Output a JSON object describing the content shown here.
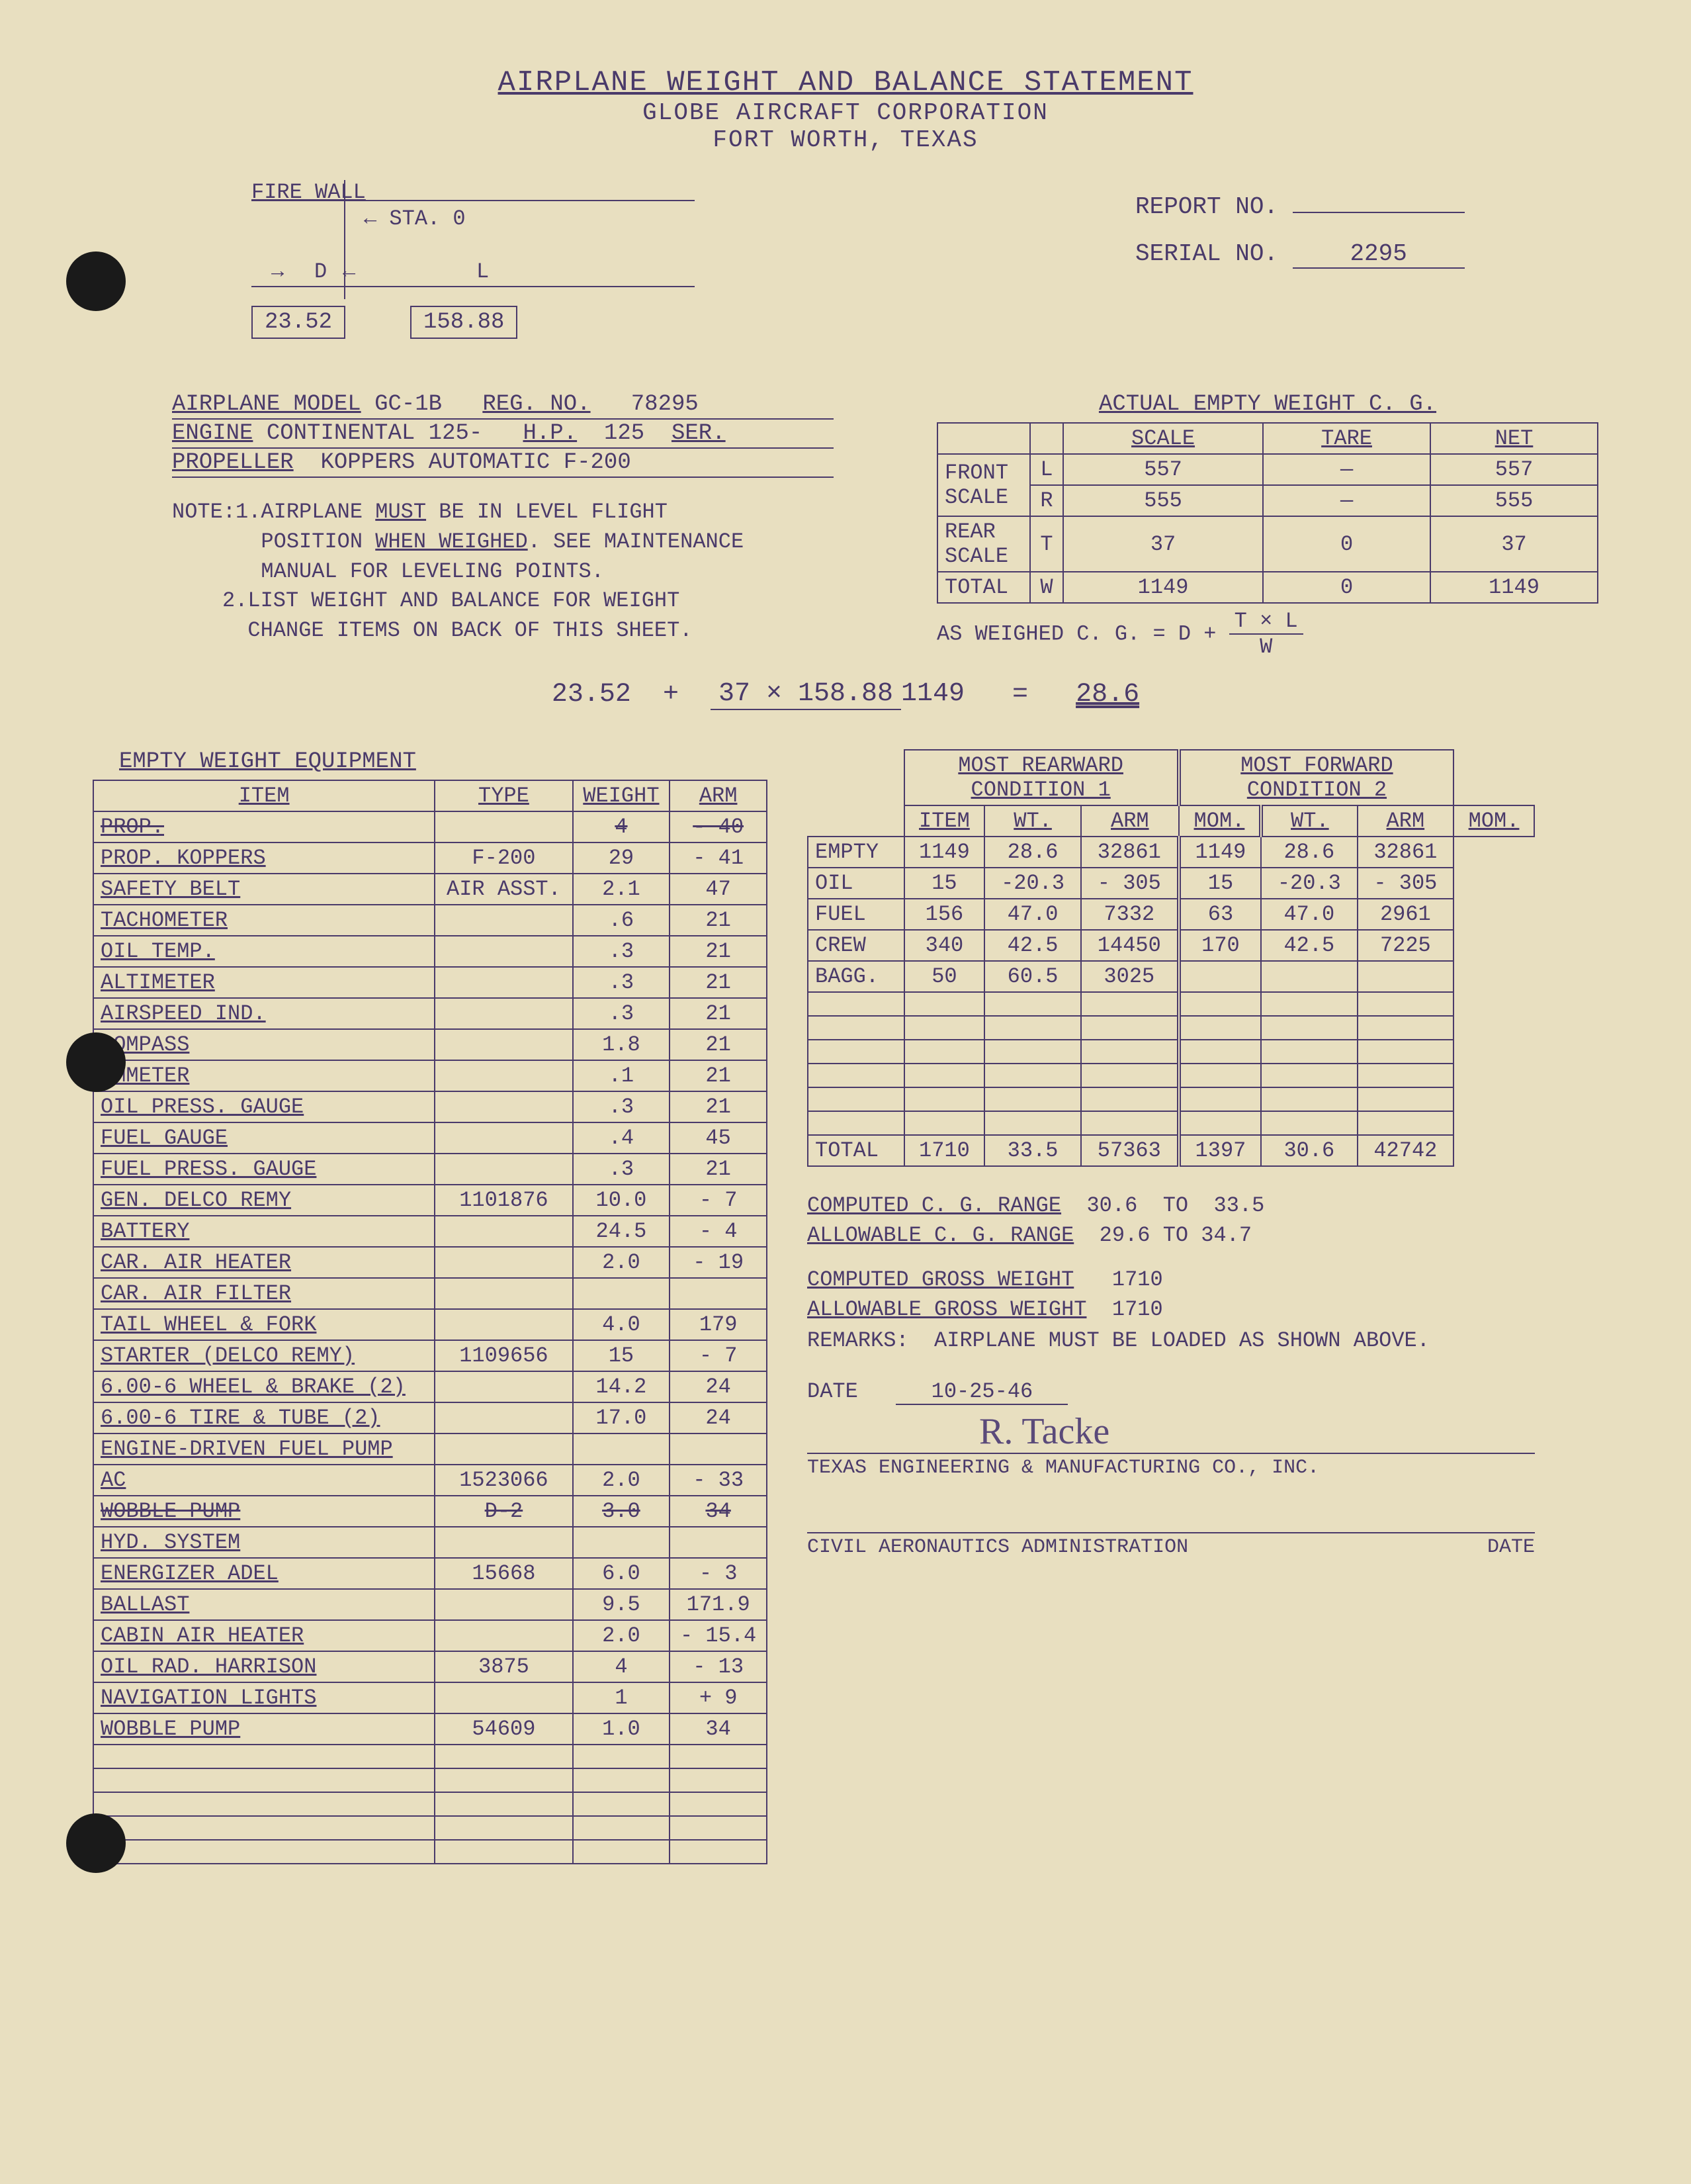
{
  "header": {
    "title": "AIRPLANE WEIGHT AND BALANCE STATEMENT",
    "company": "GLOBE AIRCRAFT CORPORATION",
    "location": "FORT WORTH, TEXAS"
  },
  "diagram": {
    "firewall_label": "FIRE WALL",
    "sta_label": "STA. 0",
    "d_label": "D",
    "l_label": "L",
    "d_value": "23.52",
    "l_value": "158.88"
  },
  "report": {
    "report_no_label": "REPORT NO.",
    "report_no": "",
    "serial_no_label": "SERIAL NO.",
    "serial_no": "2295"
  },
  "aircraft": {
    "model_label": "AIRPLANE MODEL",
    "model": "GC-1B",
    "reg_label": "REG. NO.",
    "reg": "78295",
    "engine_label": "ENGINE",
    "engine": "CONTINENTAL 125-",
    "hp_label": "H.P.",
    "hp": "125",
    "ser_label": "SER.",
    "prop_label": "PROPELLER",
    "prop": "KOPPERS AUTOMATIC F-200"
  },
  "notes": {
    "label": "NOTE:",
    "n1": "1.",
    "note1": "AIRPLANE MUST BE IN LEVEL FLIGHT POSITION WHEN WEIGHED. SEE MAINTENANCE MANUAL FOR LEVELING POINTS.",
    "n2": "2.",
    "note2": "LIST WEIGHT AND BALANCE FOR WEIGHT CHANGE ITEMS ON BACK OF THIS SHEET."
  },
  "weight_table": {
    "title": "ACTUAL EMPTY WEIGHT C. G.",
    "cols": [
      "",
      "",
      "SCALE",
      "TARE",
      "NET"
    ],
    "rows": [
      [
        "FRONT",
        "L",
        "557",
        "—",
        "557"
      ],
      [
        "SCALE",
        "R",
        "555",
        "—",
        "555"
      ],
      [
        "REAR SCALE",
        "T",
        "37",
        "0",
        "37"
      ],
      [
        "TOTAL",
        "W",
        "1149",
        "0",
        "1149"
      ]
    ],
    "formula": "AS WEIGHED C. G. = D + T × L / W"
  },
  "calc": {
    "d": "23.52",
    "plus": "+",
    "top": "37 × 158.88",
    "bot": "1149",
    "eq": "=",
    "result": "28.6"
  },
  "equip": {
    "title": "EMPTY WEIGHT EQUIPMENT",
    "cols": [
      "ITEM",
      "TYPE",
      "WEIGHT",
      "ARM"
    ],
    "rows": [
      {
        "item": "PROP.",
        "type": "",
        "wt": "4",
        "arm": "- 40",
        "strike": true
      },
      {
        "item": "PROP. KOPPERS",
        "type": "F-200",
        "wt": "29",
        "arm": "- 41"
      },
      {
        "item": "SAFETY BELT",
        "type": "AIR ASST.",
        "wt": "2.1",
        "arm": "47"
      },
      {
        "item": "TACHOMETER",
        "type": "",
        "wt": ".6",
        "arm": "21"
      },
      {
        "item": "OIL TEMP.",
        "type": "",
        "wt": ".3",
        "arm": "21"
      },
      {
        "item": "ALTIMETER",
        "type": "",
        "wt": ".3",
        "arm": "21"
      },
      {
        "item": "AIRSPEED IND.",
        "type": "",
        "wt": ".3",
        "arm": "21"
      },
      {
        "item": "COMPASS",
        "type": "",
        "wt": "1.8",
        "arm": "21"
      },
      {
        "item": "AMMETER",
        "type": "",
        "wt": ".1",
        "arm": "21"
      },
      {
        "item": "OIL PRESS. GAUGE",
        "type": "",
        "wt": ".3",
        "arm": "21"
      },
      {
        "item": "FUEL GAUGE",
        "type": "",
        "wt": ".4",
        "arm": "45"
      },
      {
        "item": "FUEL PRESS. GAUGE",
        "type": "",
        "wt": ".3",
        "arm": "21"
      },
      {
        "item": "GEN. DELCO REMY",
        "type": "1101876",
        "wt": "10.0",
        "arm": "- 7"
      },
      {
        "item": "BATTERY",
        "type": "",
        "wt": "24.5",
        "arm": "- 4"
      },
      {
        "item": "CAR. AIR HEATER",
        "type": "",
        "wt": "2.0",
        "arm": "- 19"
      },
      {
        "item": "CAR. AIR FILTER",
        "type": "",
        "wt": "",
        "arm": ""
      },
      {
        "item": "TAIL WHEEL & FORK",
        "type": "",
        "wt": "4.0",
        "arm": "179"
      },
      {
        "item": "STARTER (DELCO REMY)",
        "type": "1109656",
        "wt": "15",
        "arm": "- 7"
      },
      {
        "item": "6.00-6 WHEEL & BRAKE (2)",
        "type": "",
        "wt": "14.2",
        "arm": "24"
      },
      {
        "item": "6.00-6 TIRE & TUBE (2)",
        "type": "",
        "wt": "17.0",
        "arm": "24"
      },
      {
        "item": "ENGINE-DRIVEN FUEL PUMP",
        "type": "",
        "wt": "",
        "arm": ""
      },
      {
        "item": "AC",
        "type": "1523066",
        "wt": "2.0",
        "arm": "- 33"
      },
      {
        "item": "WOBBLE PUMP",
        "type": "D-2",
        "wt": "3.0",
        "arm": "34",
        "strike": true
      },
      {
        "item": "HYD. SYSTEM",
        "type": "",
        "wt": "",
        "arm": ""
      },
      {
        "item": "ENERGIZER ADEL",
        "type": "15668",
        "wt": "6.0",
        "arm": "- 3"
      },
      {
        "item": "BALLAST",
        "type": "",
        "wt": "9.5",
        "arm": "171.9"
      },
      {
        "item": "CABIN AIR HEATER",
        "type": "",
        "wt": "2.0",
        "arm": "- 15.4"
      },
      {
        "item": "OIL RAD. HARRISON",
        "type": "3875",
        "wt": "4",
        "arm": "- 13"
      },
      {
        "item": "NAVIGATION LIGHTS",
        "type": "",
        "wt": "1",
        "arm": "+ 9"
      },
      {
        "item": "WOBBLE PUMP",
        "type": "54609",
        "wt": "1.0",
        "arm": "34"
      },
      {
        "item": "",
        "type": "",
        "wt": "",
        "arm": ""
      },
      {
        "item": "",
        "type": "",
        "wt": "",
        "arm": ""
      },
      {
        "item": "",
        "type": "",
        "wt": "",
        "arm": ""
      },
      {
        "item": "",
        "type": "",
        "wt": "",
        "arm": ""
      },
      {
        "item": "",
        "type": "",
        "wt": "",
        "arm": ""
      }
    ]
  },
  "conditions": {
    "head1": "MOST REARWARD",
    "sub1": "CONDITION 1",
    "head2": "MOST FORWARD",
    "sub2": "CONDITION 2",
    "cols": [
      "ITEM",
      "WT.",
      "ARM",
      "MOM.",
      "WT.",
      "ARM",
      "MOM."
    ],
    "rows": [
      [
        "EMPTY",
        "1149",
        "28.6",
        "32861",
        "1149",
        "28.6",
        "32861"
      ],
      [
        "OIL",
        "15",
        "-20.3",
        "- 305",
        "15",
        "-20.3",
        "- 305"
      ],
      [
        "FUEL",
        "156",
        "47.0",
        "7332",
        "63",
        "47.0",
        "2961"
      ],
      [
        "CREW",
        "340",
        "42.5",
        "14450",
        "170",
        "42.5",
        "7225"
      ],
      [
        "BAGG.",
        "50",
        "60.5",
        "3025",
        "",
        "",
        ""
      ],
      [
        "",
        "",
        "",
        "",
        "",
        "",
        ""
      ],
      [
        "",
        "",
        "",
        "",
        "",
        "",
        ""
      ],
      [
        "",
        "",
        "",
        "",
        "",
        "",
        ""
      ],
      [
        "",
        "",
        "",
        "",
        "",
        "",
        ""
      ],
      [
        "",
        "",
        "",
        "",
        "",
        "",
        ""
      ],
      [
        "",
        "",
        "",
        "",
        "",
        "",
        ""
      ]
    ],
    "total_label": "TOTAL",
    "total": [
      "1710",
      "33.5",
      "57363",
      "1397",
      "30.6",
      "42742"
    ]
  },
  "ranges": {
    "comp_cg_label": "COMPUTED C. G. RANGE",
    "comp_cg_from": "30.6",
    "to": "TO",
    "comp_cg_to": "33.5",
    "allow_cg_label": "ALLOWABLE C. G. RANGE",
    "allow_cg": "29.6 TO 34.7",
    "comp_gw_label": "COMPUTED GROSS WEIGHT",
    "comp_gw": "1710",
    "allow_gw_label": "ALLOWABLE GROSS WEIGHT",
    "allow_gw": "1710",
    "remarks_label": "REMARKS:",
    "remarks": "AIRPLANE MUST BE LOADED AS SHOWN ABOVE.",
    "date_label": "DATE",
    "date": "10-25-46",
    "signature": "R. Tacke",
    "company": "TEXAS ENGINEERING & MANUFACTURING CO., INC.",
    "caa": "CIVIL AERONAUTICS ADMINISTRATION",
    "caa_date": "DATE"
  },
  "colors": {
    "bg": "#e8dfc0",
    "ink": "#4a3a6a"
  }
}
